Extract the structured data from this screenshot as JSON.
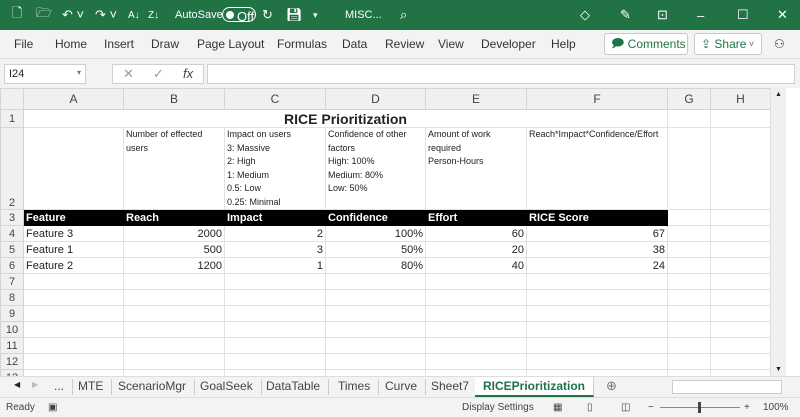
{
  "titlebar": {
    "autosave_label": "AutoSave",
    "autosave_state": "Off",
    "filename": "MISC...",
    "accent": "#217346"
  },
  "menu": {
    "items": [
      "File",
      "Home",
      "Insert",
      "Draw",
      "Page Layout",
      "Formulas",
      "Data",
      "Review",
      "View",
      "Developer",
      "Help"
    ],
    "comments": "Comments",
    "share": "Share"
  },
  "formula_bar": {
    "name_box": "I24",
    "fx": "fx",
    "value": ""
  },
  "columns": [
    "A",
    "B",
    "C",
    "D",
    "E",
    "F",
    "G",
    "H"
  ],
  "rows": [
    "1",
    "2",
    "3",
    "4",
    "5",
    "6",
    "7",
    "8",
    "9",
    "10",
    "11",
    "12",
    "13"
  ],
  "sheet": {
    "title": "RICE Prioritization",
    "descriptions": [
      "",
      "Number of effected users",
      "Impact on users\n3: Massive\n2: High\n1: Medium\n0.5: Low\n0.25: Minimal",
      "Confidence of other factors\nHigh: 100%\nMedium: 80%\nLow: 50%",
      "Amount of work required\nPerson-Hours",
      "Reach*Impact*Confidence/Effort"
    ],
    "headers": [
      "Feature",
      "Reach",
      "Impact",
      "Confidence",
      "Effort",
      "RICE Score"
    ],
    "data": [
      [
        "Feature 3",
        "2000",
        "2",
        "100%",
        "60",
        "67"
      ],
      [
        "Feature 1",
        "500",
        "3",
        "50%",
        "20",
        "38"
      ],
      [
        "Feature 2",
        "1200",
        "1",
        "80%",
        "40",
        "24"
      ]
    ]
  },
  "tabs": {
    "items": [
      "...",
      "MTE",
      "ScenarioMgr",
      "GoalSeek",
      "DataTable",
      "Times",
      "Curve",
      "Sheet7",
      "RICEPrioritization"
    ],
    "active": "RICEPrioritization"
  },
  "status": {
    "ready": "Ready",
    "display_settings": "Display Settings",
    "zoom": "100%"
  }
}
